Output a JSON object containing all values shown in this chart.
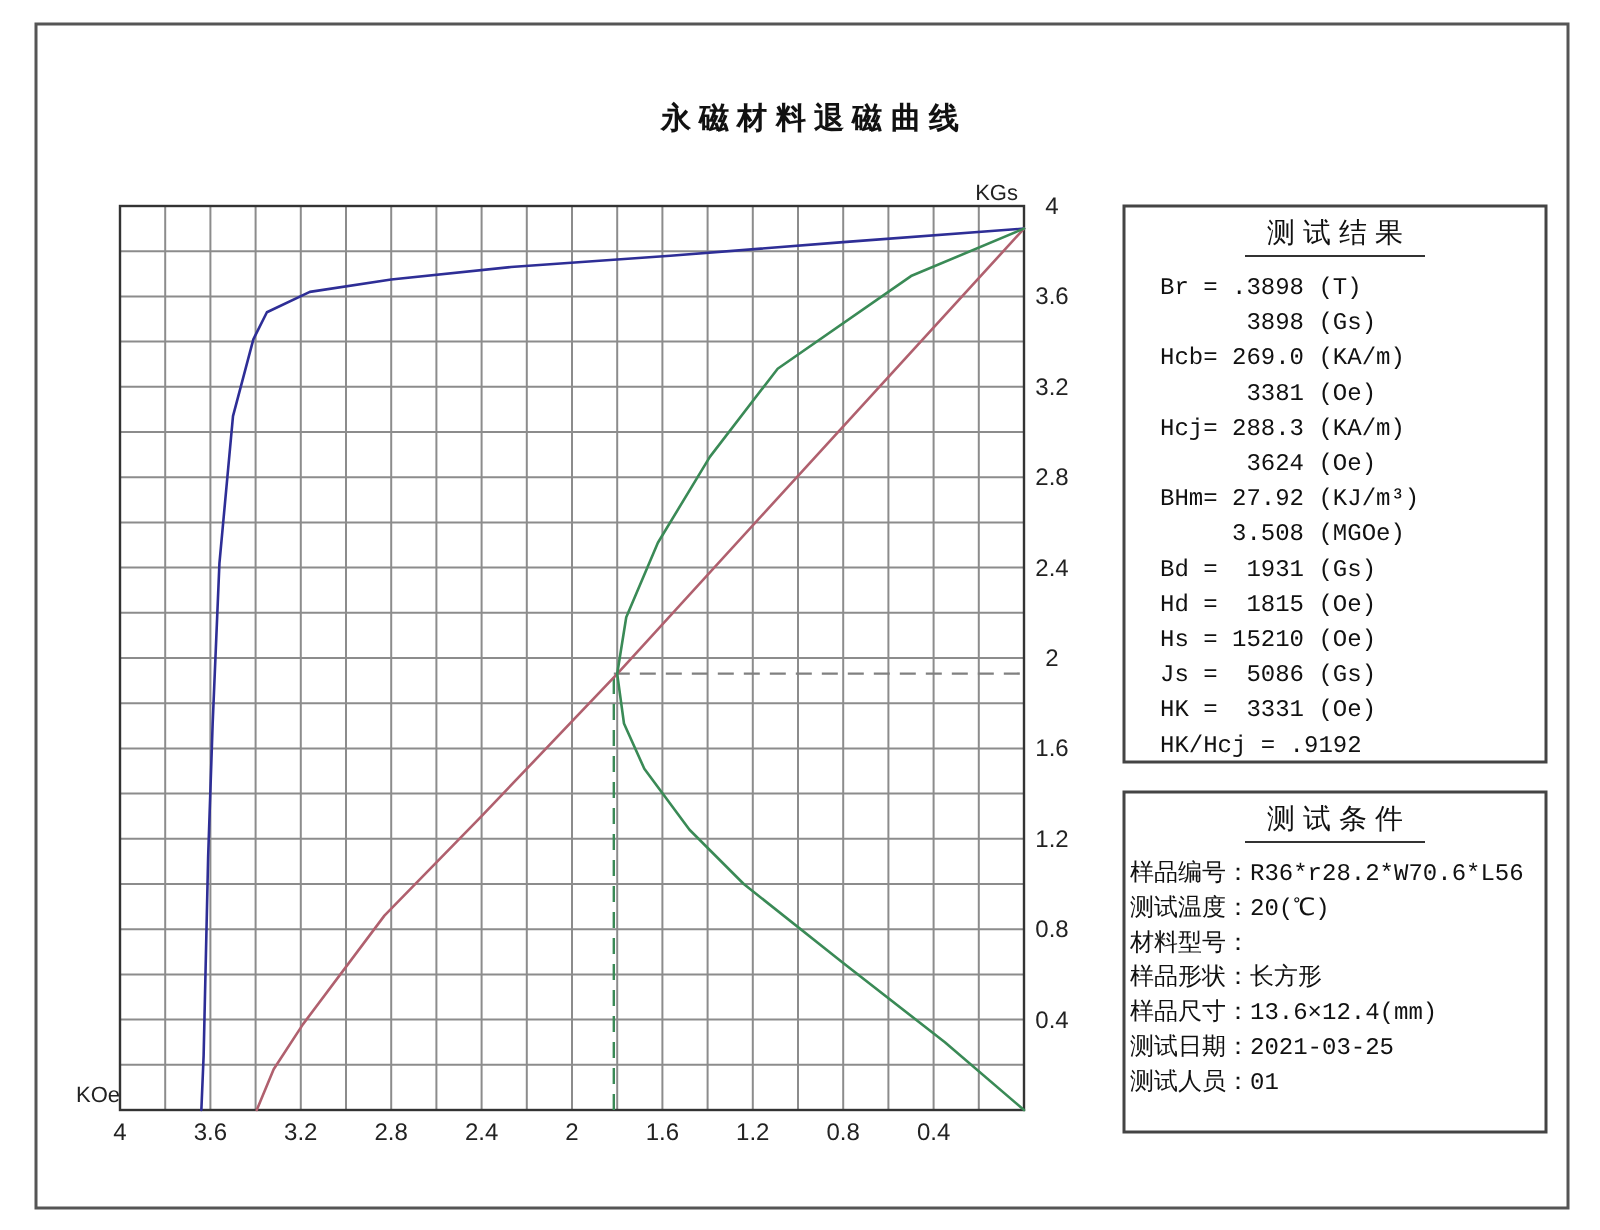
{
  "chart_data": [
    {
      "type": "line",
      "title": "永 磁 材 料 退 磁 曲 线",
      "xlabel": "KOe",
      "ylabel": "KGs",
      "xlim": [
        4,
        0
      ],
      "ylim": [
        0,
        4
      ],
      "xticks": [
        4,
        {
          "value": 3.8,
          "label": null
        },
        3.6,
        {
          "value": 3.4,
          "label": null
        },
        3.2,
        {
          "value": 3.0,
          "label": null
        },
        2.8,
        {
          "value": 2.6,
          "label": null
        },
        2.4,
        {
          "value": 2.2,
          "label": null
        },
        2,
        {
          "value": 1.8,
          "label": null
        },
        1.6,
        {
          "value": 1.4,
          "label": null
        },
        1.2,
        {
          "value": 1.0,
          "label": null
        },
        0.8,
        {
          "value": 0.6,
          "label": null
        },
        0.4,
        {
          "value": 0.2,
          "label": null
        },
        {
          "value": 0,
          "label": null
        }
      ],
      "yticks": [
        {
          "value": 0,
          "label": null
        },
        {
          "value": 0.2,
          "label": null
        },
        0.4,
        {
          "value": 0.6,
          "label": null
        },
        0.8,
        {
          "value": 1.0,
          "label": null
        },
        1.2,
        {
          "value": 1.4,
          "label": null
        },
        1.6,
        {
          "value": 1.8,
          "label": null
        },
        2,
        {
          "value": 2.2,
          "label": null
        },
        2.4,
        {
          "value": 2.6,
          "label": null
        },
        2.8,
        {
          "value": 3.0,
          "label": null
        },
        3.2,
        {
          "value": 3.4,
          "label": null
        },
        3.6,
        {
          "value": 3.8,
          "label": null
        },
        4
      ],
      "grid": true,
      "series": [
        {
          "color": "#2e2e96",
          "x": [
            0,
            0.8,
            1.565,
            2.27,
            2.8,
            3.16,
            3.35,
            3.41,
            3.5,
            3.56,
            3.59,
            3.61,
            3.63,
            3.64
          ],
          "values": [
            3.9,
            3.84,
            3.78,
            3.73,
            3.675,
            3.62,
            3.53,
            3.41,
            3.07,
            2.42,
            1.71,
            1.12,
            0.24,
            0
          ]
        },
        {
          "color": "#b0606e",
          "x": [
            0,
            1.8,
            2.4,
            2.83,
            3.19,
            3.32,
            3.395
          ],
          "values": [
            3.9,
            1.93,
            1.3,
            0.86,
            0.38,
            0.18,
            0
          ]
        },
        {
          "color": "#3a8a56",
          "x": [
            0,
            0.5,
            1.09,
            1.39,
            1.62,
            1.76,
            1.8,
            1.77,
            1.68,
            1.48,
            1.24,
            0.8,
            0.35,
            0
          ],
          "values": [
            3.9,
            3.69,
            3.28,
            2.89,
            2.51,
            2.18,
            1.93,
            1.71,
            1.51,
            1.24,
            1.0,
            0.65,
            0.3,
            0
          ]
        }
      ],
      "ref_lines": [
        {
          "axis": "x",
          "value": 1.815,
          "color": "#3a8a56",
          "line_style": "dashed"
        },
        {
          "axis": "y",
          "value": 1.931,
          "color": "#808080",
          "line_style": "dashed"
        }
      ]
    },
    {
      "type": "other",
      "title": "测 试 结 果",
      "annotations": [
        "Br = .3898 (T)",
        "      3898 (Gs)",
        "Hcb= 269.0 (KA/m)",
        "      3381 (Oe)",
        "Hcj= 288.3 (KA/m)",
        "      3624 (Oe)",
        "BHm= 27.92 (KJ/m³)",
        "     3.508 (MGOe)",
        "Bd =  1931 (Gs)",
        "Hd =  1815 (Oe)",
        "Hs = 15210 (Oe)",
        "Js =  5086 (Gs)",
        "HK =  3331 (Oe)",
        "HK/Hcj = .9192"
      ]
    },
    {
      "type": "other",
      "title": "测 试 条 件",
      "annotations": [
        "样品编号：R36*r28.2*W70.6*L56",
        "测试温度：20(℃)",
        "材料型号：",
        "样品形状：长方形",
        "样品尺寸：13.6×12.4(mm)",
        "测试日期：2021-03-25",
        "测试人员：01"
      ]
    }
  ]
}
